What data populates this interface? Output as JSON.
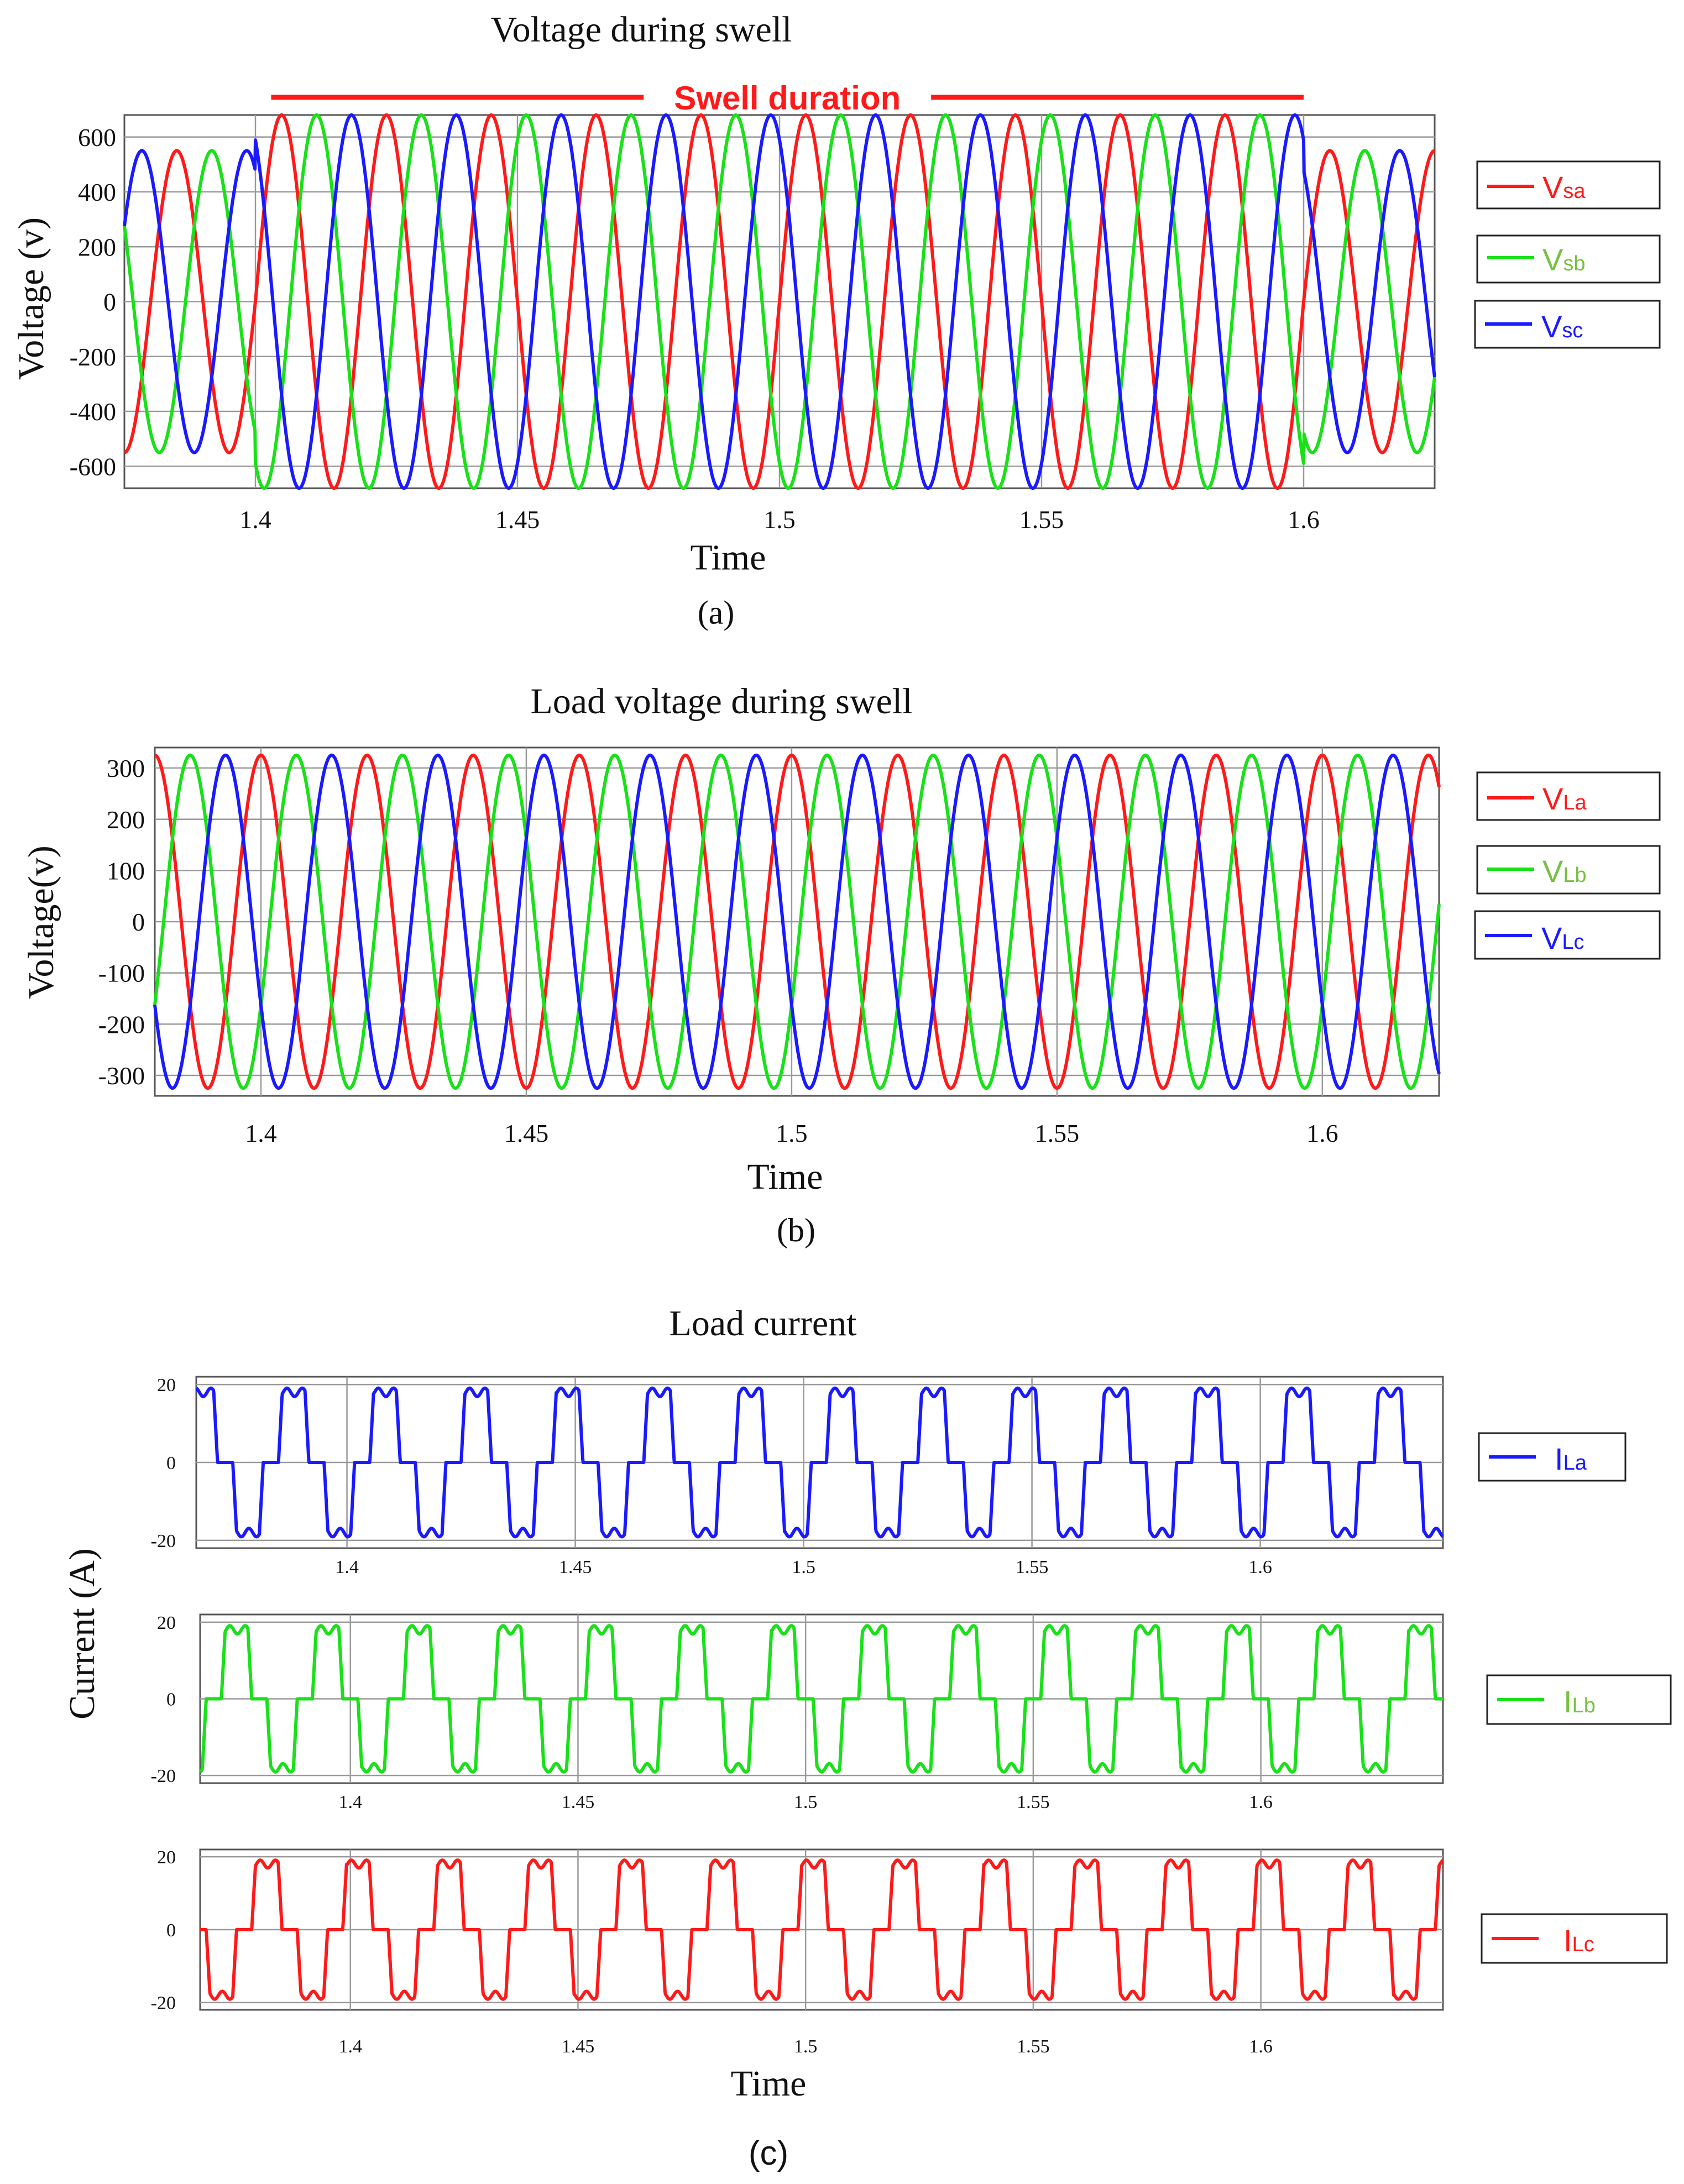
{
  "colors": {
    "red": "#ff1a1a",
    "green": "#19e019",
    "blue": "#1a1aff",
    "legend_green": "#77c142"
  },
  "chart_data": [
    {
      "id": "a",
      "type": "line",
      "title": "Voltage during swell",
      "caption": "(a)",
      "xlabel": "Time",
      "ylabel": "Voltage (v)",
      "xlim": [
        1.375,
        1.625
      ],
      "ylim": [
        -680,
        680
      ],
      "xticks": [
        1.4,
        1.45,
        1.5,
        1.55,
        1.6
      ],
      "xtick_labels": [
        "1.4",
        "1.45",
        "1.5",
        "1.55",
        "1.6"
      ],
      "yticks": [
        600,
        400,
        200,
        0,
        -200,
        -400,
        -600
      ],
      "ytick_labels": [
        "600",
        "400",
        "200",
        "0",
        "-200",
        "-400",
        "-600"
      ],
      "annotation": {
        "text": "Swell duration",
        "x_start": 1.403,
        "x_end": 1.6
      },
      "frequency_hz": 50,
      "waveform": "sine",
      "swell": {
        "start": 1.4,
        "end": 1.6,
        "normal_amplitude": 550,
        "swell_amplitude": 680
      },
      "series": [
        {
          "name": "Vsa",
          "label_main": "V",
          "label_sub": "sa",
          "color": "#ff1a1a",
          "label_color": "#ff1a1a",
          "phase_deg": 0
        },
        {
          "name": "Vsb",
          "label_main": "V",
          "label_sub": "sb",
          "color": "#19e019",
          "label_color": "#77c142",
          "phase_deg": -120
        },
        {
          "name": "Vsc",
          "label_main": "V",
          "label_sub": "sc",
          "color": "#1a1aff",
          "label_color": "#1a1aff",
          "phase_deg": 120
        }
      ]
    },
    {
      "id": "b",
      "type": "line",
      "title": "Load voltage during swell",
      "caption": "(b)",
      "xlabel": "Time",
      "ylabel": "Voltage(v)",
      "xlim": [
        1.38,
        1.622
      ],
      "ylim": [
        -340,
        340
      ],
      "xticks": [
        1.4,
        1.45,
        1.5,
        1.55,
        1.6
      ],
      "xtick_labels": [
        "1.4",
        "1.45",
        "1.5",
        "1.55",
        "1.6"
      ],
      "yticks": [
        300,
        200,
        100,
        0,
        -100,
        -200,
        -300
      ],
      "ytick_labels": [
        "300",
        "200",
        "100",
        "0",
        "-100",
        "-200",
        "-300"
      ],
      "frequency_hz": 50,
      "waveform": "sine",
      "amplitude": 325,
      "series": [
        {
          "name": "VLa",
          "label_main": "V",
          "label_sub": "La",
          "color": "#ff1a1a",
          "label_color": "#ff1a1a",
          "phase_deg": 90
        },
        {
          "name": "VLb",
          "label_main": "V",
          "label_sub": "Lb",
          "color": "#19e019",
          "label_color": "#77c142",
          "phase_deg": -30
        },
        {
          "name": "VLc",
          "label_main": "V",
          "label_sub": "Lc",
          "color": "#1a1aff",
          "label_color": "#1a1aff",
          "phase_deg": 210
        }
      ]
    },
    {
      "id": "c",
      "type": "line",
      "title": "Load current",
      "caption": "(c)",
      "xlabel": "Time",
      "ylabel": "Current (A)",
      "xlim": [
        1.367,
        1.64
      ],
      "ylim": [
        -22,
        22
      ],
      "xticks": [
        1.4,
        1.45,
        1.5,
        1.55,
        1.6
      ],
      "xtick_labels": [
        "1.4",
        "1.45",
        "1.5",
        "1.55",
        "1.6"
      ],
      "yticks": [
        20,
        0,
        -20
      ],
      "ytick_labels": [
        "20",
        "0",
        "-20"
      ],
      "frequency_hz": 50,
      "waveform": "six-pulse rectifier current",
      "amplitude": 18,
      "series": [
        {
          "name": "ILa",
          "label_main": "I",
          "label_sub": "La",
          "color": "#1a1aff",
          "label_color": "#1a1aff",
          "phase_deg": 300
        },
        {
          "name": "ILb",
          "label_main": "I",
          "label_sub": "Lb",
          "color": "#19e019",
          "label_color": "#77c142",
          "phase_deg": 180
        },
        {
          "name": "ILc",
          "label_main": "I",
          "label_sub": "Lc",
          "color": "#ff1a1a",
          "label_color": "#ff1a1a",
          "phase_deg": 60
        }
      ]
    }
  ]
}
